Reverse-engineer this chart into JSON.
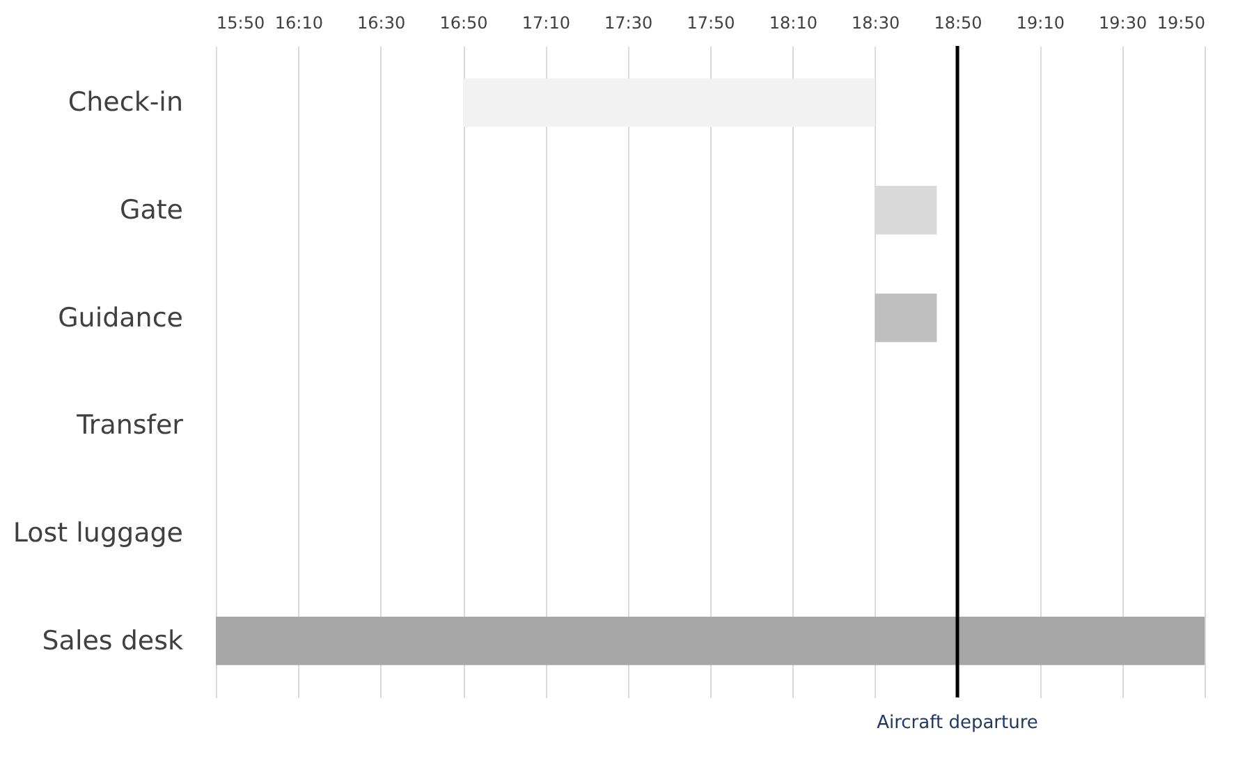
{
  "chart_data": {
    "type": "bar",
    "orientation": "horizontal",
    "categories": [
      "Check-in",
      "Gate",
      "Guidance",
      "Transfer",
      "Lost luggage",
      "Sales desk"
    ],
    "base": [
      16.8333,
      18.5,
      18.5,
      null,
      null,
      15.8333
    ],
    "values": [
      1.667,
      0.25,
      0.25,
      null,
      null,
      4
    ],
    "colors": [
      "#f2f2f2",
      "#d9d9d9",
      "#bfbfbf",
      "#bfbfbf",
      "#bfbfbf",
      "#a6a6a6"
    ],
    "xlim": [
      15.8333,
      19.8333
    ],
    "xticks": [
      {
        "value": 15.8333,
        "label": "15:50"
      },
      {
        "value": 16.1667,
        "label": "16:10"
      },
      {
        "value": 16.5,
        "label": "16:30"
      },
      {
        "value": 16.8333,
        "label": "16:50"
      },
      {
        "value": 17.1667,
        "label": "17:10"
      },
      {
        "value": 17.5,
        "label": "17:30"
      },
      {
        "value": 17.8333,
        "label": "17:50"
      },
      {
        "value": 18.1667,
        "label": "18:10"
      },
      {
        "value": 18.5,
        "label": "18:30"
      },
      {
        "value": 18.8333,
        "label": "18:50"
      },
      {
        "value": 19.1667,
        "label": "19:10"
      },
      {
        "value": 19.5,
        "label": "19:30"
      },
      {
        "value": 19.8333,
        "label": "19:50"
      }
    ],
    "ref_lines": [
      {
        "axis": "x",
        "value": 18.8333,
        "label": "Aircraft departure",
        "color": "#000000"
      }
    ],
    "grid": "x"
  }
}
